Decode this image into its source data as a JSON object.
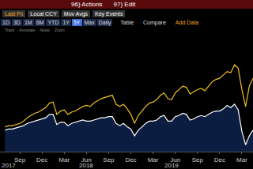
{
  "toolbar": {
    "menu": [
      "96) Actions",
      "97) Edit"
    ],
    "options": [
      "Last Px",
      "Local CCY",
      "Mov Avgs",
      "Key Events"
    ],
    "ranges": [
      "1D",
      "3D",
      "1M",
      "6M",
      "YTD",
      "1Y",
      "5Y",
      "Max",
      "Daily"
    ],
    "selected_range": "5Y",
    "actions": [
      "Table",
      "Compare",
      "Add Data"
    ],
    "tools": [
      "Track",
      "Annotate",
      "News",
      "Zoom"
    ]
  },
  "chart_data": {
    "type": "line",
    "categories": [
      null,
      null,
      null,
      null,
      "Sep",
      null,
      null,
      null,
      null,
      null,
      "Dec",
      null,
      null,
      null,
      null,
      null,
      "Mar",
      null,
      null,
      null,
      null,
      null,
      "Jun",
      null,
      null,
      null,
      null,
      null,
      "Sep",
      null,
      null,
      null,
      null,
      null,
      "Dec",
      null,
      null,
      null,
      null,
      null,
      "Mar",
      null,
      null,
      null,
      null,
      null,
      "Jun",
      null,
      null,
      null,
      null,
      null,
      "Sep",
      null,
      null,
      null,
      null,
      null,
      "Dec",
      null,
      null,
      null,
      null,
      null,
      "Mar",
      null,
      null,
      null
    ],
    "annotations": [
      {
        "text": "2017",
        "x": 1
      },
      {
        "text": "2018",
        "x": 22
      },
      {
        "text": "2019",
        "x": 45
      }
    ],
    "series": [
      {
        "color": "#f0c020",
        "type": "line",
        "values": [
          22,
          23,
          23,
          24,
          25,
          27,
          30,
          32,
          34,
          35,
          37,
          39,
          43,
          44,
          33,
          36,
          37,
          33,
          35,
          36,
          38,
          40,
          41,
          40,
          43,
          45,
          47,
          48,
          49,
          50,
          42,
          40,
          42,
          38,
          33,
          25,
          32,
          36,
          40,
          43,
          44,
          46,
          50,
          52,
          47,
          46,
          52,
          55,
          58,
          57,
          51,
          53,
          55,
          56,
          54,
          58,
          62,
          64,
          65,
          68,
          71,
          70,
          77,
          74,
          55,
          40,
          58,
          65
        ]
      },
      {
        "color": "#ffffff",
        "type": "area",
        "values": [
          19,
          20,
          20,
          21,
          22,
          23,
          25,
          26,
          27,
          28,
          29,
          30,
          33,
          33,
          24,
          26,
          26,
          23,
          25,
          26,
          27,
          28,
          27,
          27,
          28,
          29,
          30,
          30,
          31,
          31,
          25,
          23,
          25,
          22,
          20,
          14,
          19,
          22,
          25,
          27,
          27,
          28,
          31,
          32,
          27,
          27,
          31,
          32,
          34,
          33,
          28,
          29,
          31,
          32,
          31,
          33,
          35,
          36,
          36,
          38,
          41,
          39,
          42,
          37,
          18,
          6,
          14,
          19
        ]
      }
    ],
    "ylim": [
      0,
      105
    ],
    "grid": false,
    "tick_labels": "x"
  }
}
